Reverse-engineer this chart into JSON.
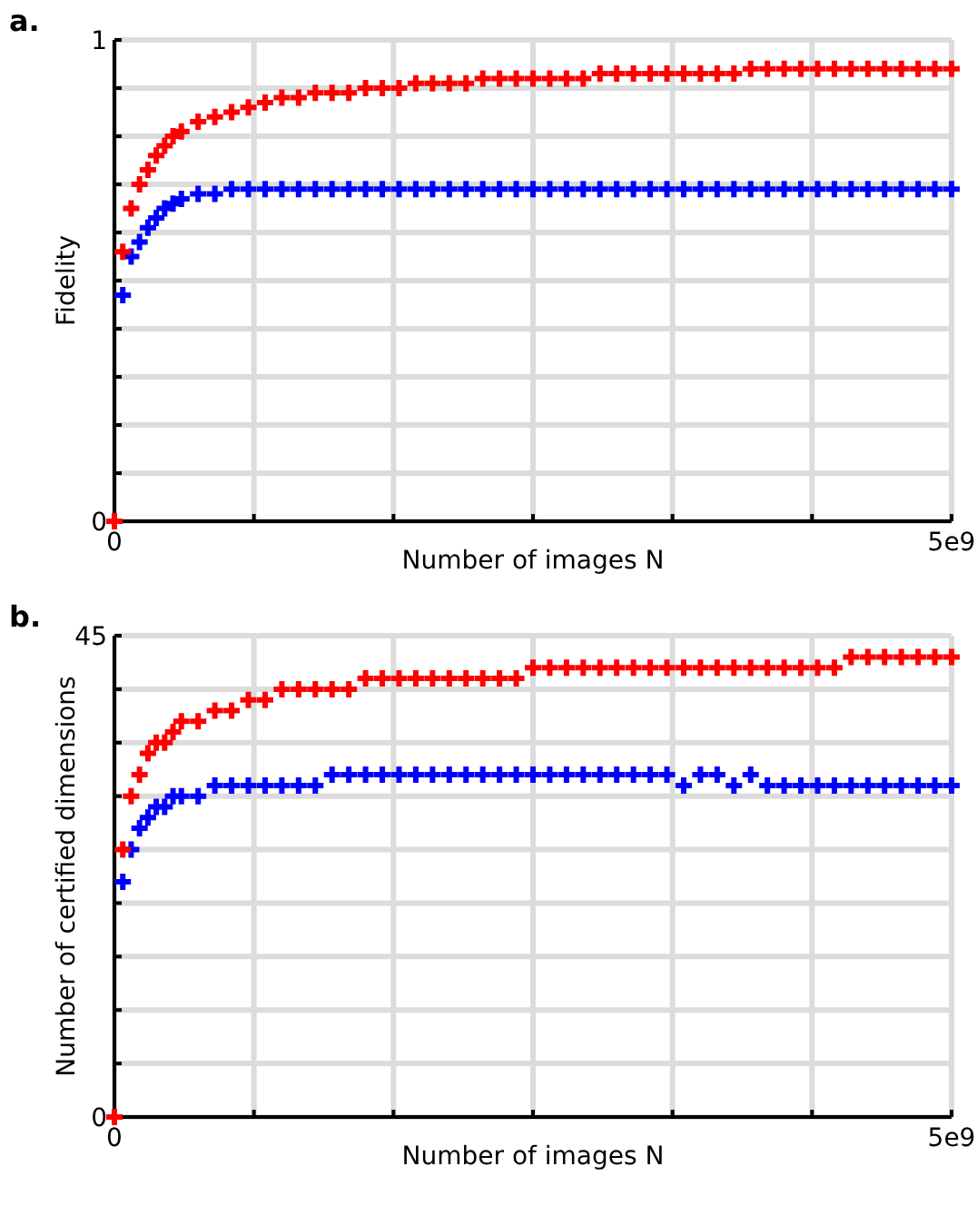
{
  "chart_data": [
    {
      "type": "scatter",
      "title": "a.",
      "xlabel": "Number of images N",
      "ylabel": "Fidelity",
      "marker": "cross",
      "grid": true,
      "x": [
        0,
        50000000,
        100000000,
        150000000,
        200000000,
        250000000,
        300000000,
        350000000,
        400000000,
        500000000,
        600000000,
        700000000,
        800000000,
        900000000,
        1000000000,
        1100000000,
        1200000000,
        1300000000,
        1400000000,
        1500000000,
        1600000000,
        1700000000,
        1800000000,
        1900000000,
        2000000000,
        2100000000,
        2200000000,
        2300000000,
        2400000000,
        2500000000,
        2600000000,
        2700000000,
        2800000000,
        2900000000,
        3000000000,
        3100000000,
        3200000000,
        3300000000,
        3400000000,
        3500000000,
        3600000000,
        3700000000,
        3800000000,
        3900000000,
        4000000000,
        4100000000,
        4200000000,
        4300000000,
        4400000000,
        4500000000,
        4600000000,
        4700000000,
        4800000000,
        4900000000,
        5000000000
      ],
      "xlim": [
        0,
        5000000000
      ],
      "xticks": [
        0,
        {
          "value": 833333333,
          "label": null
        },
        {
          "value": 1666666667,
          "label": null
        },
        {
          "value": 2500000000,
          "label": null
        },
        {
          "value": 3333333333,
          "label": null
        },
        {
          "value": 4166666667,
          "label": null
        },
        {
          "value": 5000000000,
          "label": "5e9"
        }
      ],
      "ylim": [
        0,
        1
      ],
      "yticks": [
        0,
        {
          "value": 0.1,
          "label": null
        },
        {
          "value": 0.2,
          "label": null
        },
        {
          "value": 0.3,
          "label": null
        },
        {
          "value": 0.4,
          "label": null
        },
        {
          "value": 0.5,
          "label": null
        },
        {
          "value": 0.6,
          "label": null
        },
        {
          "value": 0.7,
          "label": null
        },
        {
          "value": 0.8,
          "label": null
        },
        {
          "value": 0.9,
          "label": null
        },
        1
      ],
      "series": [
        {
          "color": "#0000ff",
          "values": [
            null,
            0.47,
            0.55,
            0.58,
            0.61,
            0.63,
            0.65,
            0.66,
            0.67,
            0.68,
            0.68,
            0.69,
            0.69,
            0.69,
            0.69,
            0.69,
            0.69,
            0.69,
            0.69,
            0.69,
            0.69,
            0.69,
            0.69,
            0.69,
            0.69,
            0.69,
            0.69,
            0.69,
            0.69,
            0.69,
            0.69,
            0.69,
            0.69,
            0.69,
            0.69,
            0.69,
            0.69,
            0.69,
            0.69,
            0.69,
            0.69,
            0.69,
            0.69,
            0.69,
            0.69,
            0.69,
            0.69,
            0.69,
            0.69,
            0.69,
            0.69,
            0.69,
            0.69,
            0.69,
            0.69
          ]
        },
        {
          "color": "#ff0000",
          "values": [
            0,
            0.56,
            0.65,
            0.7,
            0.73,
            0.76,
            0.78,
            0.8,
            0.81,
            0.83,
            0.84,
            0.85,
            0.86,
            0.87,
            0.88,
            0.88,
            0.89,
            0.89,
            0.89,
            0.9,
            0.9,
            0.9,
            0.91,
            0.91,
            0.91,
            0.91,
            0.92,
            0.92,
            0.92,
            0.92,
            0.92,
            0.92,
            0.92,
            0.93,
            0.93,
            0.93,
            0.93,
            0.93,
            0.93,
            0.93,
            0.93,
            0.93,
            0.94,
            0.94,
            0.94,
            0.94,
            0.94,
            0.94,
            0.94,
            0.94,
            0.94,
            0.94,
            0.94,
            0.94,
            0.94
          ]
        }
      ]
    },
    {
      "type": "scatter",
      "title": "b.",
      "xlabel": "Number of images N",
      "ylabel": "Number of certified dimensions",
      "marker": "cross",
      "grid": true,
      "x": [
        0,
        50000000,
        100000000,
        150000000,
        200000000,
        250000000,
        300000000,
        350000000,
        400000000,
        500000000,
        600000000,
        700000000,
        800000000,
        900000000,
        1000000000,
        1100000000,
        1200000000,
        1300000000,
        1400000000,
        1500000000,
        1600000000,
        1700000000,
        1800000000,
        1900000000,
        2000000000,
        2100000000,
        2200000000,
        2300000000,
        2400000000,
        2500000000,
        2600000000,
        2700000000,
        2800000000,
        2900000000,
        3000000000,
        3100000000,
        3200000000,
        3300000000,
        3400000000,
        3500000000,
        3600000000,
        3700000000,
        3800000000,
        3900000000,
        4000000000,
        4100000000,
        4200000000,
        4300000000,
        4400000000,
        4500000000,
        4600000000,
        4700000000,
        4800000000,
        4900000000,
        5000000000
      ],
      "xlim": [
        0,
        5000000000
      ],
      "xticks": [
        0,
        {
          "value": 833333333,
          "label": null
        },
        {
          "value": 1666666667,
          "label": null
        },
        {
          "value": 2500000000,
          "label": null
        },
        {
          "value": 3333333333,
          "label": null
        },
        {
          "value": 4166666667,
          "label": null
        },
        {
          "value": 5000000000,
          "label": "5e9"
        }
      ],
      "ylim": [
        0,
        45
      ],
      "yticks": [
        0,
        {
          "value": 5,
          "label": null
        },
        {
          "value": 10,
          "label": null
        },
        {
          "value": 15,
          "label": null
        },
        {
          "value": 20,
          "label": null
        },
        {
          "value": 25,
          "label": null
        },
        {
          "value": 30,
          "label": null
        },
        {
          "value": 35,
          "label": null
        },
        {
          "value": 40,
          "label": null
        },
        45
      ],
      "series": [
        {
          "color": "#0000ff",
          "values": [
            null,
            22,
            25,
            27,
            28,
            29,
            29,
            30,
            30,
            30,
            31,
            31,
            31,
            31,
            31,
            31,
            31,
            32,
            32,
            32,
            32,
            32,
            32,
            32,
            32,
            32,
            32,
            32,
            32,
            32,
            32,
            32,
            32,
            32,
            32,
            32,
            32,
            32,
            31,
            32,
            32,
            31,
            32,
            31,
            31,
            31,
            31,
            31,
            31,
            31,
            31,
            31,
            31,
            31,
            31
          ]
        },
        {
          "color": "#ff0000",
          "values": [
            0,
            25,
            30,
            32,
            34,
            35,
            35,
            36,
            37,
            37,
            38,
            38,
            39,
            39,
            40,
            40,
            40,
            40,
            40,
            41,
            41,
            41,
            41,
            41,
            41,
            41,
            41,
            41,
            41,
            42,
            42,
            42,
            42,
            42,
            42,
            42,
            42,
            42,
            42,
            42,
            42,
            42,
            42,
            42,
            42,
            42,
            42,
            42,
            43,
            43,
            43,
            43,
            43,
            43,
            43
          ]
        }
      ]
    }
  ]
}
